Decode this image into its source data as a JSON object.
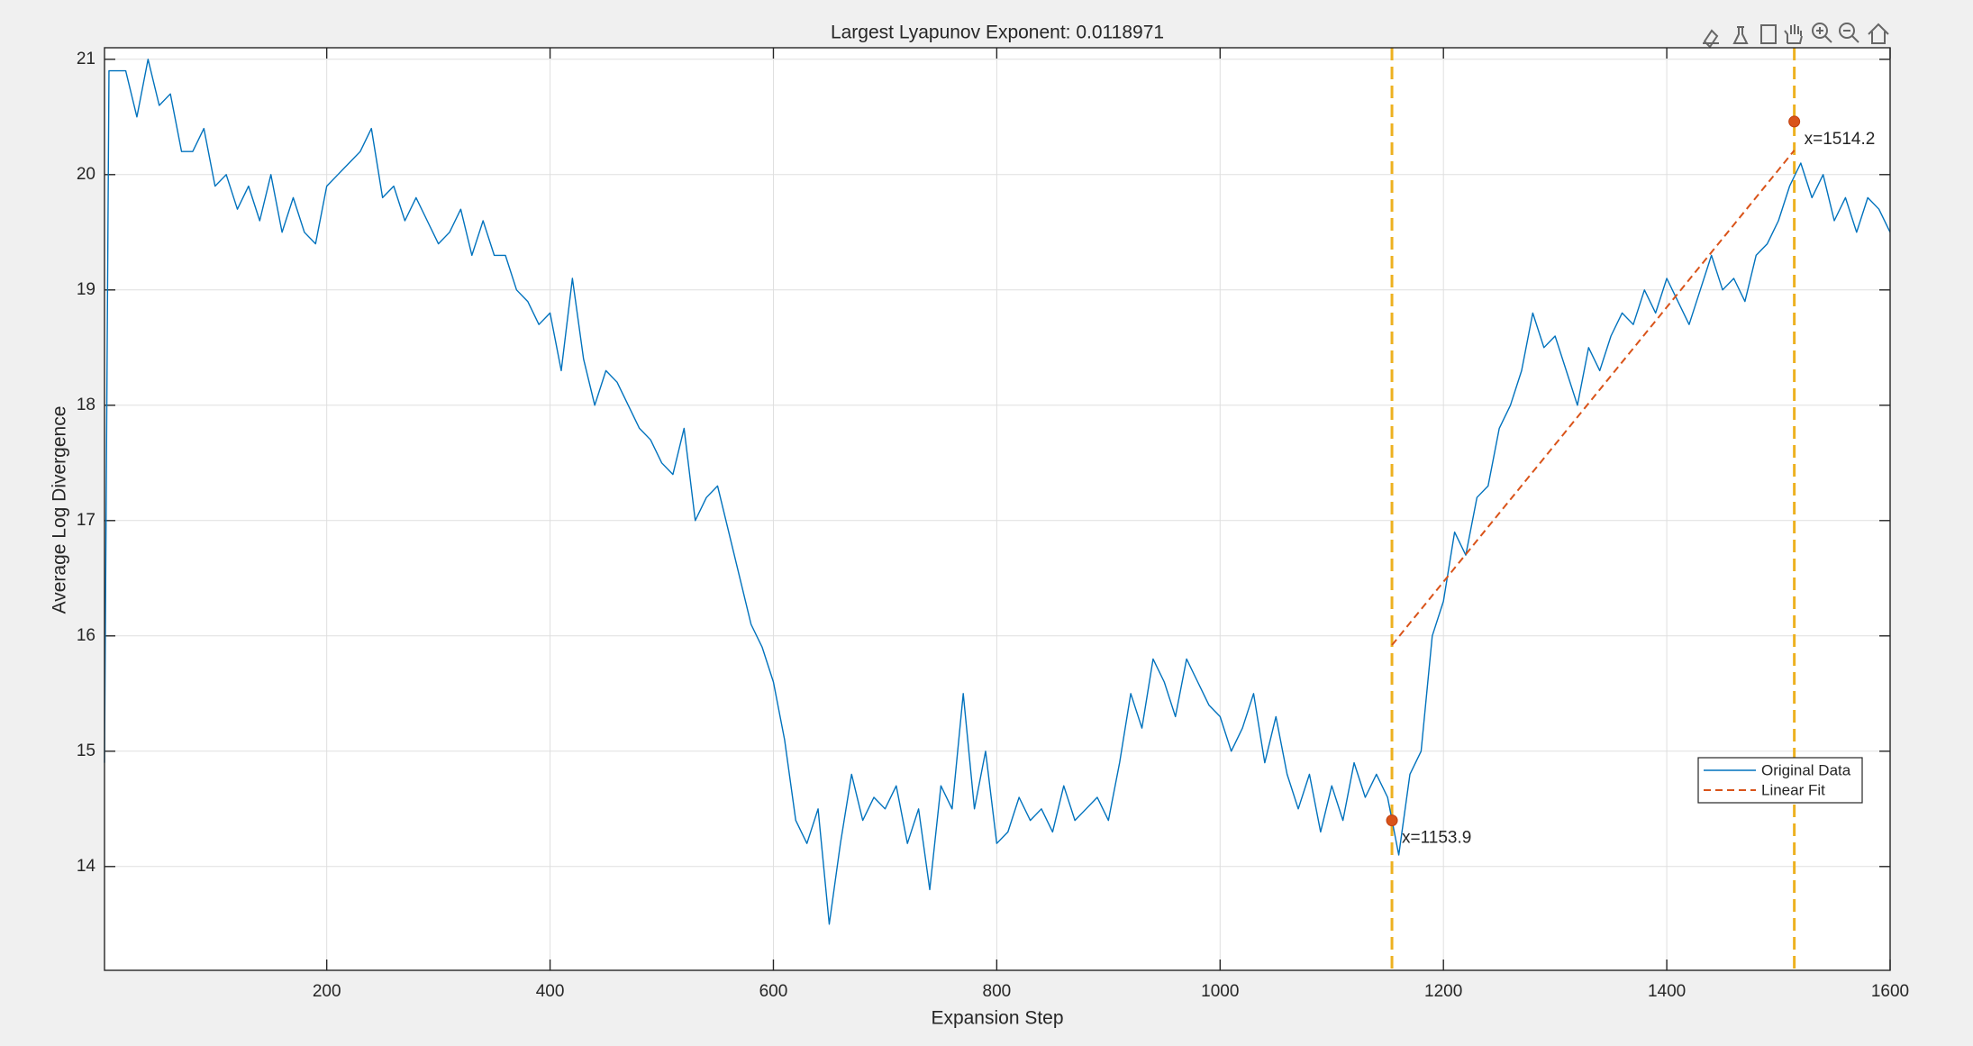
{
  "chart_data": {
    "type": "line",
    "title": "Largest Lyapunov Exponent: 0.0118971",
    "x_label": "Expansion Step",
    "y_label": "Average Log Divergence",
    "xlim": [
      1,
      1600
    ],
    "ylim": [
      13.1,
      21.1
    ],
    "xticks": [
      200,
      400,
      600,
      800,
      1000,
      1200,
      1400,
      1600
    ],
    "yticks": [
      14,
      15,
      16,
      17,
      18,
      19,
      20,
      21
    ],
    "grid": true,
    "legend": "southeast",
    "series": [
      {
        "name": "Original Data",
        "color": "#0072bd",
        "dashed": false,
        "x": [
          1,
          5,
          10,
          20,
          30,
          40,
          50,
          60,
          70,
          80,
          90,
          100,
          110,
          120,
          130,
          140,
          150,
          160,
          170,
          180,
          190,
          200,
          210,
          220,
          230,
          240,
          250,
          260,
          270,
          280,
          290,
          300,
          310,
          320,
          330,
          340,
          350,
          360,
          370,
          380,
          390,
          400,
          410,
          420,
          430,
          440,
          450,
          460,
          470,
          480,
          490,
          500,
          510,
          520,
          530,
          540,
          550,
          560,
          570,
          580,
          590,
          600,
          610,
          620,
          630,
          640,
          650,
          660,
          670,
          680,
          690,
          700,
          710,
          720,
          730,
          740,
          750,
          760,
          770,
          780,
          790,
          800,
          810,
          820,
          830,
          840,
          850,
          860,
          870,
          880,
          890,
          900,
          910,
          920,
          930,
          940,
          950,
          960,
          970,
          980,
          990,
          1000,
          1010,
          1020,
          1030,
          1040,
          1050,
          1060,
          1070,
          1080,
          1090,
          1100,
          1110,
          1120,
          1130,
          1140,
          1150,
          1160,
          1170,
          1180,
          1190,
          1200,
          1210,
          1220,
          1230,
          1240,
          1250,
          1260,
          1270,
          1280,
          1290,
          1300,
          1310,
          1320,
          1330,
          1340,
          1350,
          1360,
          1370,
          1380,
          1390,
          1400,
          1410,
          1420,
          1430,
          1440,
          1450,
          1460,
          1470,
          1480,
          1490,
          1500,
          1510,
          1520,
          1530,
          1540,
          1550,
          1560,
          1570,
          1580,
          1590,
          1600
        ],
        "values": [
          14.9,
          20.9,
          20.9,
          20.9,
          20.5,
          21.0,
          20.6,
          20.7,
          20.2,
          20.2,
          20.4,
          19.9,
          20.0,
          19.7,
          19.9,
          19.6,
          20.0,
          19.5,
          19.8,
          19.5,
          19.4,
          19.9,
          20.0,
          20.1,
          20.2,
          20.4,
          19.8,
          19.9,
          19.6,
          19.8,
          19.6,
          19.4,
          19.5,
          19.7,
          19.3,
          19.6,
          19.3,
          19.3,
          19.0,
          18.9,
          18.7,
          18.8,
          18.3,
          19.1,
          18.4,
          18.0,
          18.3,
          18.2,
          18.0,
          17.8,
          17.7,
          17.5,
          17.4,
          17.8,
          17.0,
          17.2,
          17.3,
          16.9,
          16.5,
          16.1,
          15.9,
          15.6,
          15.1,
          14.4,
          14.2,
          14.5,
          13.5,
          14.2,
          14.8,
          14.4,
          14.6,
          14.5,
          14.7,
          14.2,
          14.5,
          13.8,
          14.7,
          14.5,
          15.5,
          14.5,
          15.0,
          14.2,
          14.3,
          14.6,
          14.4,
          14.5,
          14.3,
          14.7,
          14.4,
          14.5,
          14.6,
          14.4,
          14.9,
          15.5,
          15.2,
          15.8,
          15.6,
          15.3,
          15.8,
          15.6,
          15.4,
          15.3,
          15.0,
          15.2,
          15.5,
          14.9,
          15.3,
          14.8,
          14.5,
          14.8,
          14.3,
          14.7,
          14.4,
          14.9,
          14.6,
          14.8,
          14.6,
          14.1,
          14.8,
          15.0,
          16.0,
          16.3,
          16.9,
          16.7,
          17.2,
          17.3,
          17.8,
          18.0,
          18.3,
          18.8,
          18.5,
          18.6,
          18.3,
          18.0,
          18.5,
          18.3,
          18.6,
          18.8,
          18.7,
          19.0,
          18.8,
          19.1,
          18.9,
          18.7,
          19.0,
          19.3,
          19.0,
          19.1,
          18.9,
          19.3,
          19.4,
          19.6,
          19.9,
          20.1,
          19.8,
          20.0,
          19.6,
          19.8,
          19.5,
          19.8,
          19.7,
          19.5
        ]
      },
      {
        "name": "Linear Fit",
        "color": "#d95319",
        "dashed": true,
        "x": [
          1153.9,
          1514.2
        ],
        "values": [
          15.92,
          20.21
        ]
      }
    ],
    "vlines": {
      "color": "#edb120",
      "x": [
        1153.9,
        1514.2
      ]
    },
    "markers": {
      "color": "#d95319",
      "points": [
        {
          "x": 1153.9,
          "y": 14.4,
          "label": "x=1153.9"
        },
        {
          "x": 1514.2,
          "y": 20.46,
          "label": "x=1514.2"
        }
      ]
    }
  }
}
